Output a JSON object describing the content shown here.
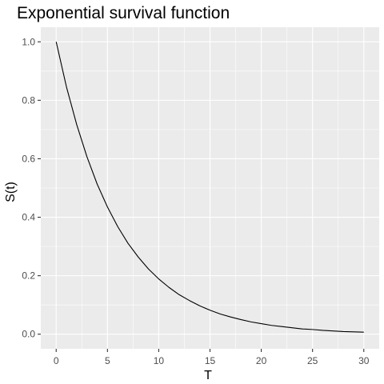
{
  "chart_data": {
    "type": "line",
    "title": "Exponential survival function",
    "xlabel": "T",
    "ylabel": "S(t)",
    "xlim": [
      -1.5,
      31.5
    ],
    "ylim": [
      -0.05,
      1.05
    ],
    "x_ticks": [
      0,
      5,
      10,
      15,
      20,
      25,
      30
    ],
    "y_ticks": [
      0.0,
      0.2,
      0.4,
      0.6,
      0.8,
      1.0
    ],
    "x_tick_labels": [
      "0",
      "5",
      "10",
      "15",
      "20",
      "25",
      "30"
    ],
    "y_tick_labels": [
      "0.0",
      "0.2",
      "0.4",
      "0.6",
      "0.8",
      "1.0"
    ],
    "grid": true,
    "panel_background": "#ebebeb",
    "grid_color": "#ffffff",
    "line_color": "#000000",
    "series": [
      {
        "x": [
          0,
          1,
          2,
          3,
          4,
          5,
          6,
          7,
          8,
          9,
          10,
          11,
          12,
          13,
          14,
          15,
          16,
          17,
          18,
          19,
          20,
          21,
          22,
          23,
          24,
          25,
          26,
          27,
          28,
          29,
          30
        ],
        "values": [
          1.0,
          0.846,
          0.717,
          0.607,
          0.513,
          0.435,
          0.368,
          0.311,
          0.264,
          0.223,
          0.189,
          0.16,
          0.135,
          0.115,
          0.097,
          0.082,
          0.069,
          0.059,
          0.05,
          0.042,
          0.036,
          0.03,
          0.026,
          0.022,
          0.018,
          0.016,
          0.013,
          0.011,
          0.009,
          0.008,
          0.007
        ]
      }
    ]
  }
}
